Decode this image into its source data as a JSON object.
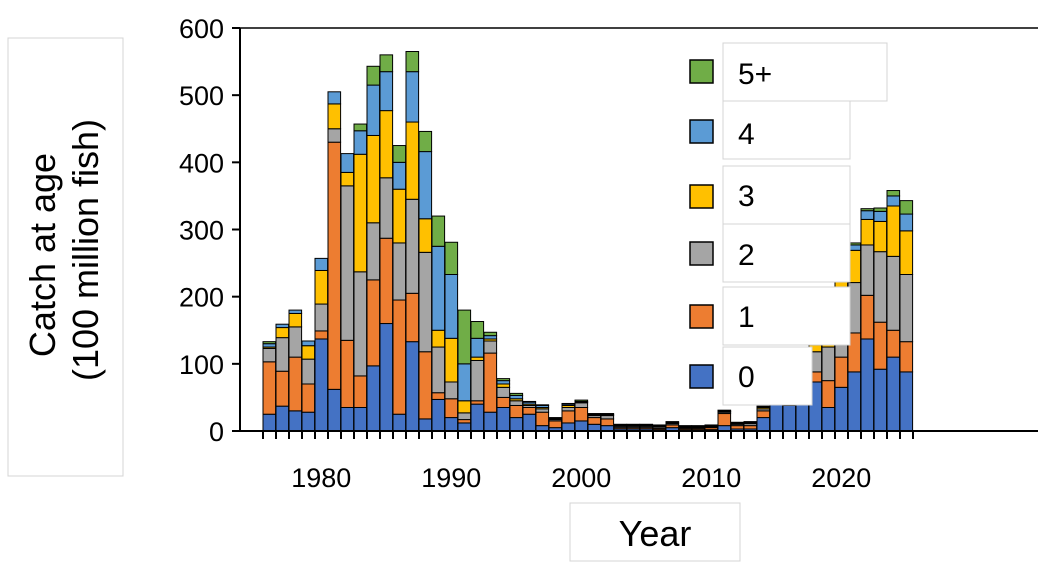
{
  "chart_data": {
    "type": "bar",
    "stacked": true,
    "ylabel_line1": "Catch at age",
    "ylabel_line2": "(100 million fish)",
    "xlabel": "Year",
    "ylim": [
      0,
      600
    ],
    "y_ticks": [
      "0",
      "100",
      "200",
      "300",
      "400",
      "500",
      "600"
    ],
    "x_tick_labels": [
      "1980",
      "1990",
      "2000",
      "2010",
      "2020"
    ],
    "x_tick_years": [
      1980,
      1990,
      2000,
      2010,
      2020
    ],
    "grid": false,
    "legend_position": "top-right",
    "legend_order": [
      "5+",
      "4",
      "3",
      "2",
      "1",
      "0"
    ],
    "categories": [
      1976,
      1977,
      1978,
      1979,
      1980,
      1981,
      1982,
      1983,
      1984,
      1985,
      1986,
      1987,
      1988,
      1989,
      1990,
      1991,
      1992,
      1993,
      1994,
      1995,
      1996,
      1997,
      1998,
      1999,
      2000,
      2001,
      2002,
      2003,
      2004,
      2005,
      2006,
      2007,
      2008,
      2009,
      2010,
      2011,
      2012,
      2013,
      2014,
      2015,
      2016,
      2017,
      2018,
      2019,
      2020,
      2021,
      2022,
      2023,
      2024,
      2025
    ],
    "series": [
      {
        "name": "0",
        "color": "#4472c4",
        "values": [
          25,
          37,
          30,
          28,
          137,
          62,
          35,
          35,
          97,
          160,
          25,
          133,
          18,
          47,
          20,
          12,
          40,
          28,
          35,
          20,
          25,
          8,
          5,
          12,
          15,
          10,
          8,
          3,
          3,
          3,
          2,
          5,
          2,
          2,
          2,
          8,
          3,
          3,
          20,
          40,
          38,
          60,
          73,
          35,
          65,
          88,
          137,
          92,
          110,
          88
        ]
      },
      {
        "name": "1",
        "color": "#ed7d31",
        "values": [
          78,
          52,
          80,
          42,
          12,
          368,
          100,
          47,
          128,
          127,
          170,
          72,
          100,
          10,
          28,
          5,
          5,
          88,
          15,
          18,
          10,
          20,
          10,
          18,
          20,
          10,
          10,
          2,
          2,
          2,
          2,
          4,
          2,
          2,
          3,
          18,
          5,
          5,
          10,
          30,
          12,
          20,
          15,
          40,
          45,
          58,
          65,
          70,
          40,
          45
        ]
      },
      {
        "name": "2",
        "color": "#a5a5a5",
        "values": [
          20,
          50,
          45,
          37,
          40,
          20,
          230,
          155,
          85,
          90,
          85,
          140,
          148,
          68,
          25,
          10,
          60,
          18,
          15,
          7,
          3,
          5,
          2,
          5,
          7,
          3,
          5,
          2,
          2,
          2,
          2,
          2,
          1,
          1,
          1,
          2,
          2,
          3,
          3,
          5,
          12,
          14,
          30,
          50,
          100,
          75,
          75,
          105,
          110,
          100
        ]
      },
      {
        "name": "3",
        "color": "#ffc000",
        "values": [
          2,
          15,
          20,
          20,
          50,
          37,
          20,
          175,
          130,
          100,
          80,
          115,
          50,
          25,
          65,
          18,
          5,
          3,
          5,
          3,
          2,
          2,
          1,
          3,
          1,
          1,
          1,
          1,
          1,
          1,
          1,
          1,
          1,
          1,
          1,
          1,
          1,
          1,
          2,
          2,
          3,
          4,
          10,
          20,
          20,
          48,
          38,
          45,
          75,
          65
        ]
      },
      {
        "name": "4",
        "color": "#5b9bd5",
        "values": [
          5,
          5,
          5,
          7,
          18,
          18,
          28,
          35,
          75,
          58,
          40,
          75,
          100,
          125,
          95,
          55,
          28,
          5,
          5,
          5,
          3,
          3,
          1,
          2,
          1,
          1,
          1,
          1,
          1,
          1,
          1,
          1,
          1,
          1,
          1,
          1,
          1,
          1,
          1,
          1,
          2,
          2,
          3,
          5,
          5,
          8,
          13,
          15,
          15,
          25
        ]
      },
      {
        "name": "5+",
        "color": "#70ad47",
        "values": [
          3,
          0,
          0,
          0,
          0,
          0,
          0,
          10,
          28,
          25,
          25,
          30,
          30,
          45,
          48,
          80,
          25,
          5,
          3,
          3,
          1,
          1,
          1,
          1,
          2,
          1,
          1,
          1,
          1,
          1,
          1,
          1,
          1,
          1,
          1,
          1,
          1,
          1,
          1,
          1,
          1,
          1,
          1,
          3,
          4,
          3,
          3,
          5,
          8,
          20
        ]
      }
    ]
  }
}
